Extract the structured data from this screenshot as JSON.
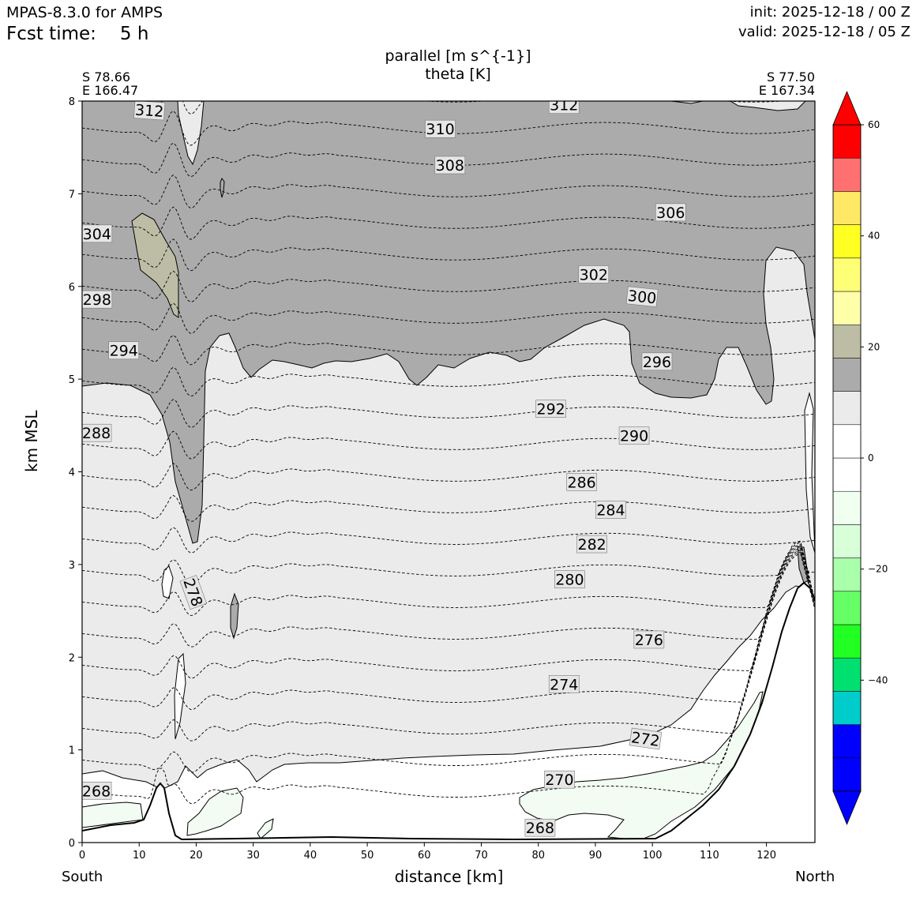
{
  "header": {
    "model": "MPAS-8.3.0 for AMPS",
    "fcst_label": "Fcst time:",
    "fcst_value": "5 h",
    "init": "init: 2025-12-18 / 00 Z",
    "valid": "valid: 2025-12-18 / 05 Z"
  },
  "corners": {
    "left_lat": "S 78.66",
    "left_lon": "E 166.47",
    "right_lat": "S 77.50",
    "right_lon": "E 167.34"
  },
  "ends": {
    "left": "South",
    "right": "North"
  },
  "colors": {
    "gray_fill": "#ababab",
    "light_fill": "#ebebeb",
    "olive_fill": "#bdbda5",
    "faint_green": "#f2fcf2"
  },
  "chart_data": {
    "type": "contour",
    "title": "parallel [m s^{-1}]",
    "subtitle": "theta [K]",
    "xlabel": "distance [km]",
    "ylabel": "km MSL",
    "xlim": [
      0,
      128.5
    ],
    "ylim": [
      0,
      8
    ],
    "xticks": [
      0,
      10,
      20,
      30,
      40,
      50,
      60,
      70,
      80,
      90,
      100,
      110,
      120
    ],
    "yticks": [
      0,
      1,
      2,
      3,
      4,
      5,
      6,
      7,
      8
    ],
    "theta_levels": [
      268,
      270,
      272,
      274,
      276,
      278,
      280,
      282,
      284,
      286,
      288,
      290,
      292,
      294,
      296,
      298,
      300,
      302,
      304,
      306,
      308,
      310,
      312
    ],
    "contour_labels": [
      {
        "text": "312",
        "x": 11.8,
        "y": 7.9
      },
      {
        "text": "312",
        "x": 84.5,
        "y": 7.96
      },
      {
        "text": "310",
        "x": 62.8,
        "y": 7.7
      },
      {
        "text": "308",
        "x": 64.5,
        "y": 7.31
      },
      {
        "text": "306",
        "x": 103.2,
        "y": 6.8
      },
      {
        "text": "304",
        "x": 2.6,
        "y": 6.57
      },
      {
        "text": "302",
        "x": 89.7,
        "y": 6.13
      },
      {
        "text": "300",
        "x": 98.2,
        "y": 5.89
      },
      {
        "text": "298",
        "x": 2.6,
        "y": 5.86
      },
      {
        "text": "296",
        "x": 100.8,
        "y": 5.19
      },
      {
        "text": "294",
        "x": 7.3,
        "y": 5.31
      },
      {
        "text": "292",
        "x": 82.2,
        "y": 4.68
      },
      {
        "text": "290",
        "x": 96.8,
        "y": 4.39
      },
      {
        "text": "288",
        "x": 2.5,
        "y": 4.42
      },
      {
        "text": "286",
        "x": 87.6,
        "y": 3.89
      },
      {
        "text": "284",
        "x": 92.7,
        "y": 3.59
      },
      {
        "text": "282",
        "x": 89.4,
        "y": 3.22
      },
      {
        "text": "280",
        "x": 85.5,
        "y": 2.84
      },
      {
        "text": "278",
        "x": 19.5,
        "y": 2.7
      },
      {
        "text": "276",
        "x": 99.4,
        "y": 2.19
      },
      {
        "text": "274",
        "x": 84.5,
        "y": 1.71
      },
      {
        "text": "272",
        "x": 98.8,
        "y": 1.12
      },
      {
        "text": "270",
        "x": 83.7,
        "y": 0.68
      },
      {
        "text": "268",
        "x": 2.5,
        "y": 0.56
      },
      {
        "text": "268",
        "x": 80.3,
        "y": 0.16
      }
    ],
    "colorbar": {
      "ticks": [
        60,
        40,
        20,
        0,
        -20,
        -40
      ],
      "levels": [
        -60,
        -55,
        -50,
        -45,
        -40,
        -35,
        -30,
        -25,
        -20,
        -15,
        -10,
        -5,
        0,
        5,
        10,
        15,
        20,
        25,
        30,
        35,
        40,
        45,
        50,
        55,
        60
      ],
      "colors": [
        "#0000ff",
        "#0000ff",
        "#00cccc",
        "#00e070",
        "#22ff22",
        "#66ff66",
        "#aaffaa",
        "#d9ffd9",
        "#f0fff0",
        "#ffffff",
        "#ffffff",
        "#ebebeb",
        "#ababab",
        "#bdbda5",
        "#ffffaa",
        "#ffff77",
        "#ffff22",
        "#ffe866",
        "#ff7070",
        "#ff0000"
      ],
      "extend": "both",
      "min_color": "#0000ff",
      "max_color": "#ff0000"
    },
    "terrain_max_km": 2.8,
    "terrain_peak_x": 126
  }
}
